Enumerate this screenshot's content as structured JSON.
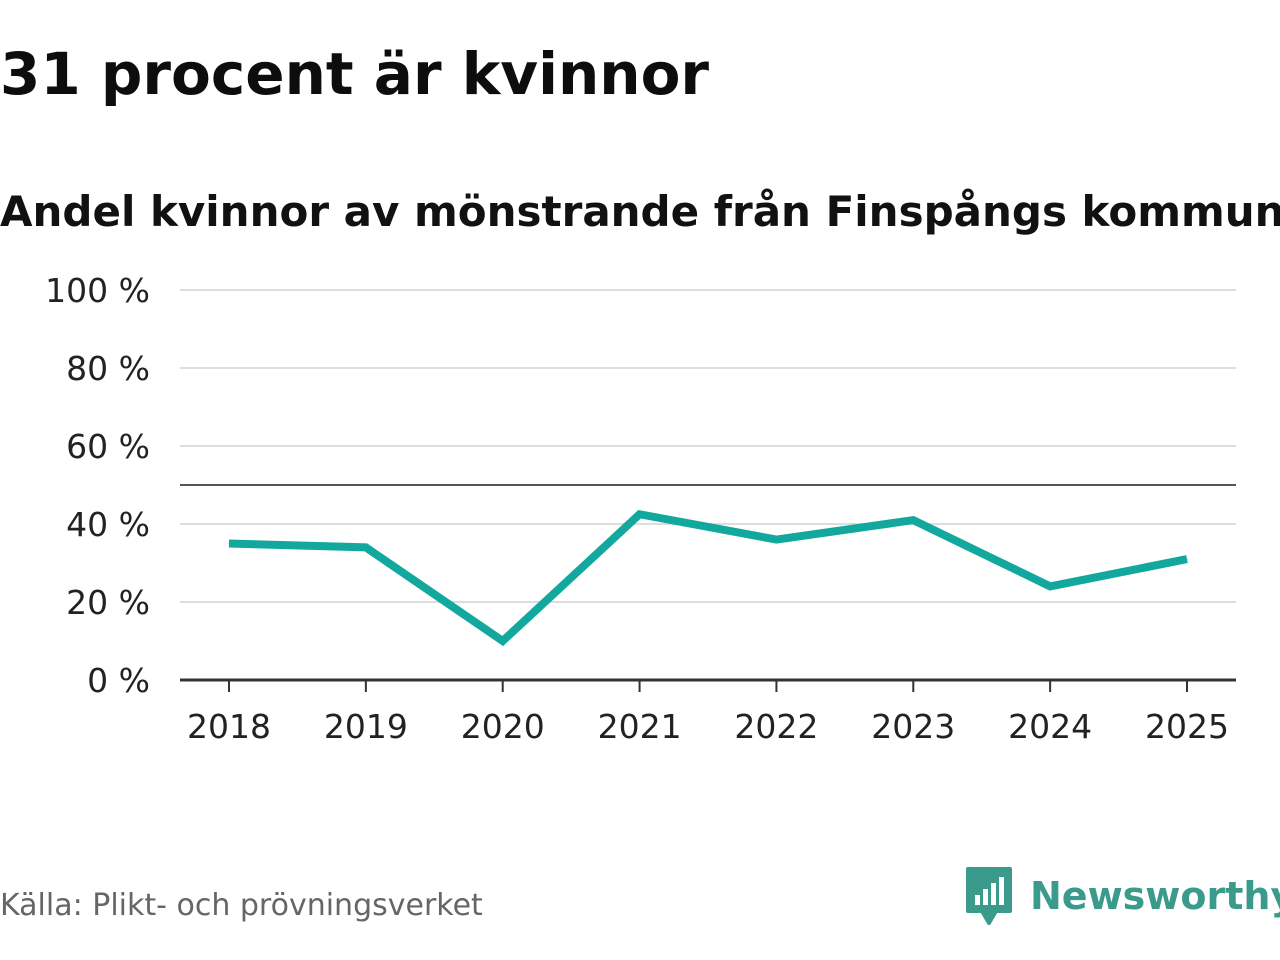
{
  "header": {
    "title": "31 procent är kvinnor",
    "subtitle": "Andel kvinnor av mönstrande från Finspångs kommun"
  },
  "footer": {
    "source": "Källa: Plikt- och prövningsverket",
    "brand": "Newsworthy",
    "brand_icon": "newsworthy-logo-icon"
  },
  "colors": {
    "line": "#13a89e",
    "grid": "#dddddd",
    "axis": "#333333",
    "reference": "#555555",
    "brand": "#3a9a8c"
  },
  "chart_data": {
    "type": "line",
    "title": "31 procent är kvinnor",
    "subtitle": "Andel kvinnor av mönstrande från Finspångs kommun",
    "xlabel": "",
    "ylabel": "",
    "categories": [
      "2018",
      "2019",
      "2020",
      "2021",
      "2022",
      "2023",
      "2024",
      "2025"
    ],
    "series": [
      {
        "name": "Andel kvinnor",
        "values": [
          35,
          34,
          10,
          42.5,
          36,
          41,
          24,
          31
        ]
      }
    ],
    "ylim": [
      0,
      100
    ],
    "yticks": [
      0,
      20,
      40,
      60,
      80,
      100
    ],
    "ytick_labels": [
      "0 %",
      "20 %",
      "40 %",
      "60 %",
      "80 %",
      "100 %"
    ],
    "reference_line": 50,
    "grid": true,
    "legend": "none"
  }
}
